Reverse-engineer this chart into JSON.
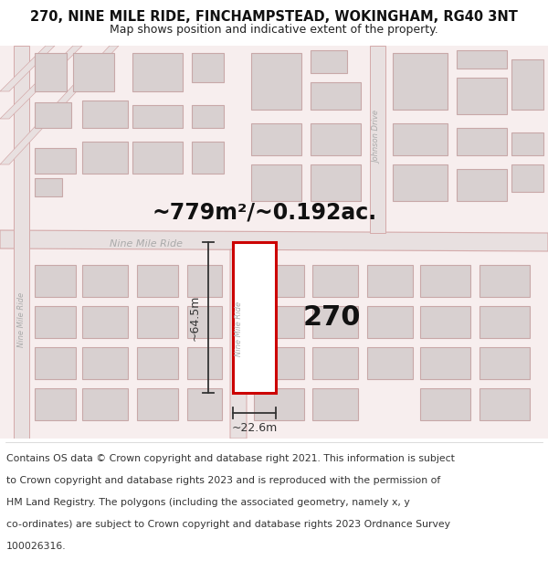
{
  "title": "270, NINE MILE RIDE, FINCHAMPSTEAD, WOKINGHAM, RG40 3NT",
  "subtitle": "Map shows position and indicative extent of the property.",
  "footer_line1": "Contains OS data © Crown copyright and database right 2021. This information is subject",
  "footer_line2": "to Crown copyright and database rights 2023 and is reproduced with the permission of",
  "footer_line3": "HM Land Registry. The polygons (including the associated geometry, namely x, y",
  "footer_line4": "co-ordinates) are subject to Crown copyright and database rights 2023 Ordnance Survey",
  "footer_line5": "100026316.",
  "area_label": "~779m²/~0.192ac.",
  "number_label": "270",
  "width_label": "~22.6m",
  "height_label": "~64.5m",
  "road_label_main": "Nine Mile Ride",
  "road_label_side": "Nine Mile Ride",
  "road_label_left": "Nine Mile Ride",
  "road_label_right": "Johnson Drive",
  "bg_color": "#ffffff",
  "map_bg": "#f7eeee",
  "road_fill": "#e8e0e0",
  "road_outline": "#d4aaaa",
  "building_fill": "#d8d0d0",
  "building_outline": "#c8a8a8",
  "plot_outline": "#cc0000",
  "plot_fill": "#ffffff",
  "dim_color": "#333333",
  "street_color": "#aaaaaa",
  "title_fontsize": 10.5,
  "subtitle_fontsize": 9,
  "footer_fontsize": 7.8,
  "area_fontsize": 17,
  "number_fontsize": 22,
  "dim_fontsize": 9
}
